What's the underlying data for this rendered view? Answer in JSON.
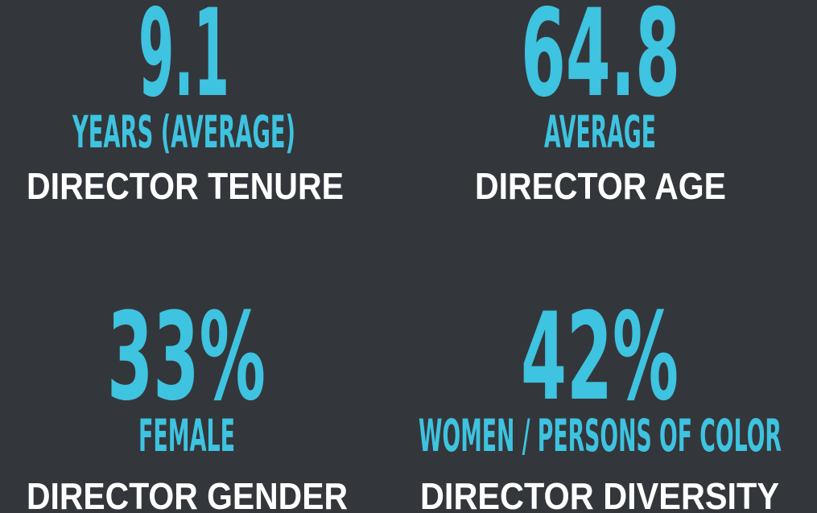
{
  "stats": [
    {
      "value": "9.1",
      "unit": "YEARS (AVERAGE)",
      "label": "DIRECTOR TENURE"
    },
    {
      "value": "64.8",
      "unit": "AVERAGE",
      "label": "DIRECTOR AGE"
    },
    {
      "value": "33%",
      "unit": "FEMALE",
      "label": "DIRECTOR GENDER"
    },
    {
      "value": "42%",
      "unit": "WOMEN / PERSONS OF COLOR",
      "label": "DIRECTOR DIVERSITY"
    }
  ]
}
